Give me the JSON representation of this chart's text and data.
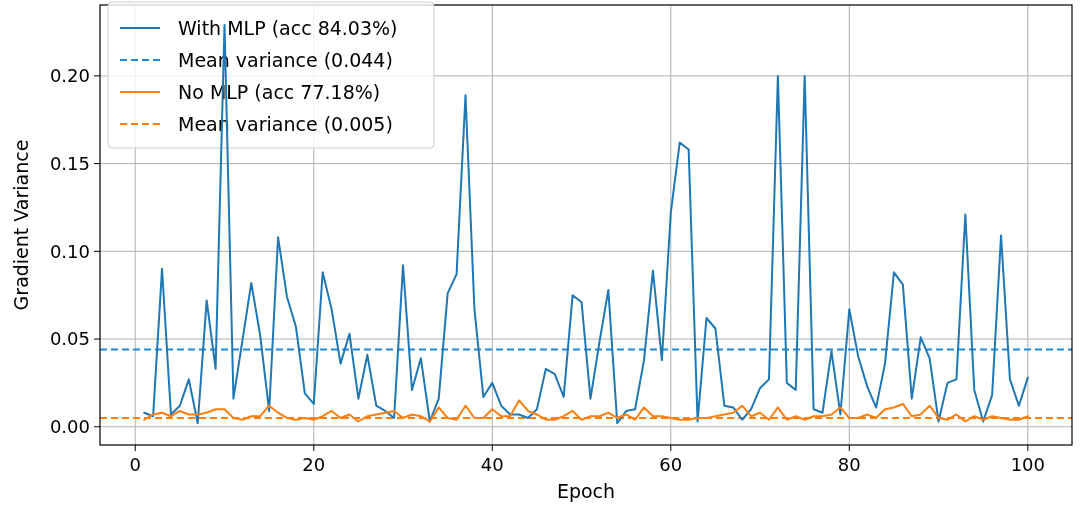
{
  "chart_data": {
    "type": "line",
    "xlabel": "Epoch",
    "ylabel": "Gradient Variance",
    "x": [
      1,
      2,
      3,
      4,
      5,
      6,
      7,
      8,
      9,
      10,
      11,
      12,
      13,
      14,
      15,
      16,
      17,
      18,
      19,
      20,
      21,
      22,
      23,
      24,
      25,
      26,
      27,
      28,
      29,
      30,
      31,
      32,
      33,
      34,
      35,
      36,
      37,
      38,
      39,
      40,
      41,
      42,
      43,
      44,
      45,
      46,
      47,
      48,
      49,
      50,
      51,
      52,
      53,
      54,
      55,
      56,
      57,
      58,
      59,
      60,
      61,
      62,
      63,
      64,
      65,
      66,
      67,
      68,
      69,
      70,
      71,
      72,
      73,
      74,
      75,
      76,
      77,
      78,
      79,
      80,
      81,
      82,
      83,
      84,
      85,
      86,
      87,
      88,
      89,
      90,
      91,
      92,
      93,
      94,
      95,
      96,
      97,
      98,
      99,
      100
    ],
    "series": [
      {
        "name": "With MLP (acc 84.03%)",
        "color": "#1f77b4",
        "values": [
          0.008,
          0.006,
          0.09,
          0.007,
          0.012,
          0.027,
          0.002,
          0.072,
          0.033,
          0.229,
          0.016,
          0.049,
          0.082,
          0.052,
          0.009,
          0.108,
          0.074,
          0.057,
          0.019,
          0.013,
          0.088,
          0.067,
          0.036,
          0.053,
          0.016,
          0.041,
          0.012,
          0.009,
          0.005,
          0.092,
          0.021,
          0.039,
          0.003,
          0.016,
          0.076,
          0.087,
          0.189,
          0.067,
          0.017,
          0.025,
          0.012,
          0.007,
          0.007,
          0.005,
          0.01,
          0.033,
          0.03,
          0.017,
          0.075,
          0.071,
          0.016,
          0.048,
          0.078,
          0.002,
          0.009,
          0.01,
          0.038,
          0.089,
          0.038,
          0.122,
          0.162,
          0.158,
          0.003,
          0.062,
          0.056,
          0.012,
          0.011,
          0.004,
          0.01,
          0.022,
          0.027,
          0.2,
          0.025,
          0.021,
          0.2,
          0.01,
          0.008,
          0.043,
          0.007,
          0.067,
          0.04,
          0.023,
          0.011,
          0.036,
          0.088,
          0.081,
          0.016,
          0.051,
          0.039,
          0.003,
          0.025,
          0.027,
          0.121,
          0.021,
          0.003,
          0.018,
          0.109,
          0.027,
          0.012,
          0.028
        ]
      },
      {
        "name": "No MLP (acc 77.18%)",
        "color": "#ff7f0e",
        "values": [
          0.004,
          0.007,
          0.008,
          0.006,
          0.009,
          0.007,
          0.007,
          0.008,
          0.01,
          0.01,
          0.005,
          0.004,
          0.006,
          0.006,
          0.012,
          0.008,
          0.005,
          0.004,
          0.005,
          0.004,
          0.006,
          0.009,
          0.005,
          0.007,
          0.003,
          0.006,
          0.007,
          0.008,
          0.009,
          0.005,
          0.007,
          0.006,
          0.003,
          0.011,
          0.005,
          0.004,
          0.012,
          0.005,
          0.005,
          0.01,
          0.006,
          0.006,
          0.015,
          0.009,
          0.007,
          0.004,
          0.004,
          0.006,
          0.009,
          0.004,
          0.006,
          0.006,
          0.008,
          0.005,
          0.007,
          0.004,
          0.011,
          0.006,
          0.006,
          0.005,
          0.004,
          0.004,
          0.005,
          0.005,
          0.006,
          0.007,
          0.008,
          0.012,
          0.006,
          0.008,
          0.004,
          0.011,
          0.004,
          0.006,
          0.004,
          0.006,
          0.006,
          0.007,
          0.011,
          0.005,
          0.005,
          0.007,
          0.005,
          0.01,
          0.011,
          0.013,
          0.006,
          0.007,
          0.012,
          0.005,
          0.004,
          0.007,
          0.003,
          0.006,
          0.004,
          0.006,
          0.005,
          0.004,
          0.004,
          0.006
        ]
      }
    ],
    "ref_lines": [
      {
        "axis": "y",
        "value": 0.044,
        "label": "Mean variance (0.044)",
        "color": "#1f88d8",
        "line_style": "dashed"
      },
      {
        "axis": "y",
        "value": 0.005,
        "label": "Mean variance (0.005)",
        "color": "#ff7f0e",
        "line_style": "dashed"
      }
    ],
    "xlim": [
      -3.95,
      104.95
    ],
    "xticks": [
      0,
      20,
      40,
      60,
      80,
      100
    ],
    "ylim": [
      -0.0104,
      0.2404
    ],
    "yticks": [
      {
        "value": 0,
        "label": "0.00"
      },
      {
        "value": 0.05,
        "label": "0.05"
      },
      {
        "value": 0.1,
        "label": "0.10"
      },
      {
        "value": 0.15,
        "label": "0.15"
      },
      {
        "value": 0.2,
        "label": "0.20"
      }
    ],
    "grid": true,
    "legend": "top left",
    "line_style": "solid",
    "marker": "none"
  }
}
